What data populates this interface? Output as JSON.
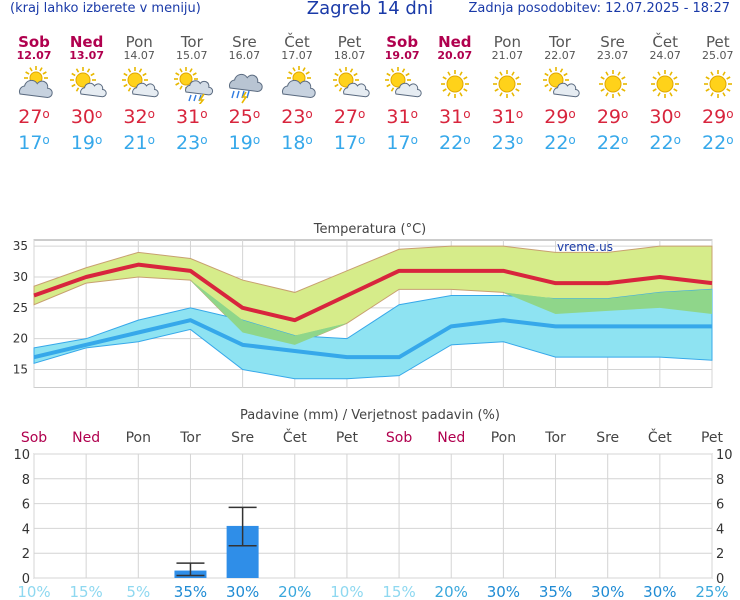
{
  "header": {
    "left": "(kraj lahko izberete v meniju)",
    "title": "Zagreb 14 dni",
    "updated": "Zadnja posodobitev: 12.07.2025 - 18:27"
  },
  "forecast": [
    {
      "day": "Sob",
      "date": "12.07",
      "weekend": true,
      "icon": "partly-cloudy-icon",
      "tmax": "27",
      "tmin": "17"
    },
    {
      "day": "Ned",
      "date": "13.07",
      "weekend": true,
      "icon": "sun-cloud-icon",
      "tmax": "30",
      "tmin": "19"
    },
    {
      "day": "Pon",
      "date": "14.07",
      "weekend": false,
      "icon": "sun-cloud-icon",
      "tmax": "32",
      "tmin": "21"
    },
    {
      "day": "Tor",
      "date": "15.07",
      "weekend": false,
      "icon": "sun-storm-icon",
      "tmax": "31",
      "tmin": "23"
    },
    {
      "day": "Sre",
      "date": "16.07",
      "weekend": false,
      "icon": "storm-cloud-icon",
      "tmax": "25",
      "tmin": "19"
    },
    {
      "day": "Čet",
      "date": "17.07",
      "weekend": false,
      "icon": "partly-cloudy-icon",
      "tmax": "23",
      "tmin": "18"
    },
    {
      "day": "Pet",
      "date": "18.07",
      "weekend": false,
      "icon": "sun-cloud-icon",
      "tmax": "27",
      "tmin": "17"
    },
    {
      "day": "Sob",
      "date": "19.07",
      "weekend": true,
      "icon": "sun-cloud-icon",
      "tmax": "31",
      "tmin": "17"
    },
    {
      "day": "Ned",
      "date": "20.07",
      "weekend": true,
      "icon": "sun-icon",
      "tmax": "31",
      "tmin": "22"
    },
    {
      "day": "Pon",
      "date": "21.07",
      "weekend": false,
      "icon": "sun-icon",
      "tmax": "31",
      "tmin": "23"
    },
    {
      "day": "Tor",
      "date": "22.07",
      "weekend": false,
      "icon": "sun-cloud-icon",
      "tmax": "29",
      "tmin": "22"
    },
    {
      "day": "Sre",
      "date": "23.07",
      "weekend": false,
      "icon": "sun-icon",
      "tmax": "29",
      "tmin": "22"
    },
    {
      "day": "Čet",
      "date": "24.07",
      "weekend": false,
      "icon": "sun-icon",
      "tmax": "30",
      "tmin": "22"
    },
    {
      "day": "Pet",
      "date": "25.07",
      "weekend": false,
      "icon": "sun-icon",
      "tmax": "29",
      "tmin": "22"
    }
  ],
  "chart_data": [
    {
      "type": "line",
      "title": "Temperatura (°C)",
      "watermark": "vreme.us",
      "x": [
        "12.07",
        "13.07",
        "14.07",
        "15.07",
        "16.07",
        "17.07",
        "18.07",
        "19.07",
        "20.07",
        "21.07",
        "22.07",
        "23.07",
        "24.07",
        "25.07"
      ],
      "ylim": [
        12,
        36
      ],
      "yticks": [
        15,
        20,
        25,
        30,
        35
      ],
      "grid": true,
      "colors": {
        "max": "#d8253d",
        "min": "#36a8ea",
        "max_band": "#d6ec8a",
        "min_band": "#8ee3f2",
        "overlap": "#8fd68a"
      },
      "series": [
        {
          "key": "max",
          "values": [
            27,
            30,
            32,
            31,
            25,
            23,
            27,
            31,
            31,
            31,
            29,
            29,
            30,
            29
          ]
        },
        {
          "key": "max_high",
          "values": [
            28.5,
            31.5,
            34,
            33,
            29.5,
            27.5,
            31,
            34.5,
            35,
            35,
            34,
            34,
            35,
            35
          ]
        },
        {
          "key": "max_low",
          "values": [
            25.5,
            29,
            30,
            29.5,
            21,
            19,
            22.5,
            28,
            28,
            27.5,
            24,
            24.5,
            25,
            24
          ]
        },
        {
          "key": "min",
          "values": [
            17,
            19,
            21,
            23,
            19,
            18,
            17,
            17,
            22,
            23,
            22,
            22,
            22,
            22
          ]
        },
        {
          "key": "min_high",
          "values": [
            18.5,
            20,
            23,
            25,
            23,
            20.5,
            20,
            25.5,
            27,
            27,
            26.5,
            26.5,
            27.5,
            28
          ]
        },
        {
          "key": "min_low",
          "values": [
            16,
            18.5,
            19.5,
            21.5,
            15,
            13.5,
            13.5,
            14,
            19,
            19.5,
            17,
            17,
            17,
            16.5
          ]
        }
      ]
    },
    {
      "type": "bar",
      "title": "Padavine (mm) / Verjetnost padavin (%)",
      "x_days": [
        "Sob",
        "Ned",
        "Pon",
        "Tor",
        "Sre",
        "Čet",
        "Pet",
        "Sob",
        "Ned",
        "Pon",
        "Tor",
        "Sre",
        "Čet",
        "Pet"
      ],
      "x_weekend": [
        true,
        true,
        false,
        false,
        false,
        false,
        false,
        true,
        true,
        false,
        false,
        false,
        false,
        false
      ],
      "ylim": [
        0,
        10
      ],
      "yticks": [
        0,
        2,
        4,
        6,
        8,
        10
      ],
      "values": [
        0,
        0,
        0,
        0.6,
        4.2,
        0,
        0,
        0,
        0,
        0,
        0,
        0,
        0,
        0
      ],
      "error_low": [
        0,
        0,
        0,
        0.2,
        2.6,
        0,
        0,
        0,
        0,
        0,
        0,
        0,
        0,
        0
      ],
      "error_high": [
        0,
        0,
        0,
        1.2,
        5.7,
        0,
        0,
        0,
        0,
        0,
        0,
        0,
        0,
        0
      ],
      "probability": [
        "10%",
        "15%",
        "5%",
        "35%",
        "30%",
        "20%",
        "10%",
        "15%",
        "20%",
        "30%",
        "35%",
        "30%",
        "30%",
        "25%"
      ],
      "colors": {
        "bar": "#2f8ee8",
        "prob": "#39a7dc",
        "prob_low": "#8ed8f0",
        "prob_high": "#1f8bd4"
      }
    }
  ]
}
